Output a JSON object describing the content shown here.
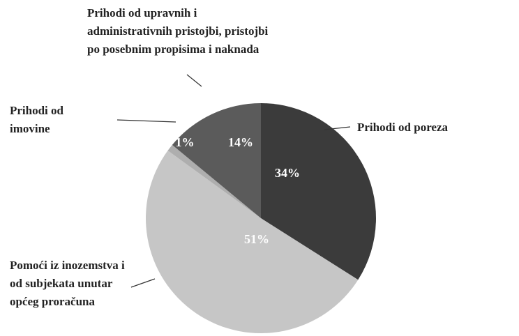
{
  "chart_data": {
    "type": "pie",
    "categories": [
      "Prihodi od poreza",
      "Pomoći iz inozemstva i od subjekata unutar općeg proračuna",
      "Prihodi od imovine",
      "Prihodi od upravnih i administrativnih pristojbi, pristojbi po posebnim propisima i naknada"
    ],
    "values": [
      34,
      51,
      1,
      14
    ],
    "value_labels": [
      "34%",
      "51%",
      "1%",
      "14%"
    ],
    "colors": [
      "#3b3b3b",
      "#c6c6c6",
      "#aeaeae",
      "#5b5b5b"
    ]
  }
}
